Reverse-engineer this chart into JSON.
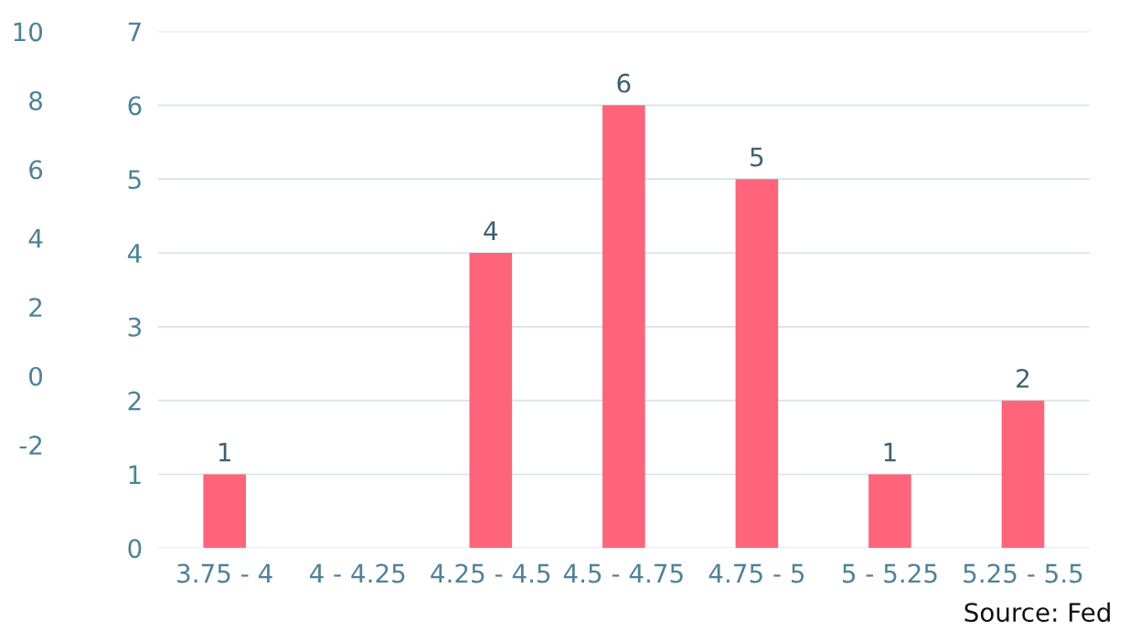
{
  "chart_data": {
    "type": "bar",
    "categories": [
      "3.75 - 4",
      "4 - 4.25",
      "4.25 - 4.5",
      "4.5 - 4.75",
      "4.75 - 5",
      "5 - 5.25",
      "5.25 - 5.5"
    ],
    "values": [
      1,
      0,
      4,
      6,
      5,
      1,
      2
    ],
    "color": "#ff647a",
    "ylim": [
      0,
      7
    ],
    "yticks": [
      0,
      1,
      2,
      3,
      4,
      5,
      6,
      7
    ],
    "y2lim": [
      -5,
      10
    ],
    "y2ticks": [
      -2,
      0,
      2,
      4,
      6,
      8,
      10
    ],
    "value_labels": [
      "1",
      null,
      "4",
      "6",
      "5",
      "1",
      "2"
    ],
    "grid": "y",
    "annotations": [
      "Source: Fed"
    ]
  }
}
